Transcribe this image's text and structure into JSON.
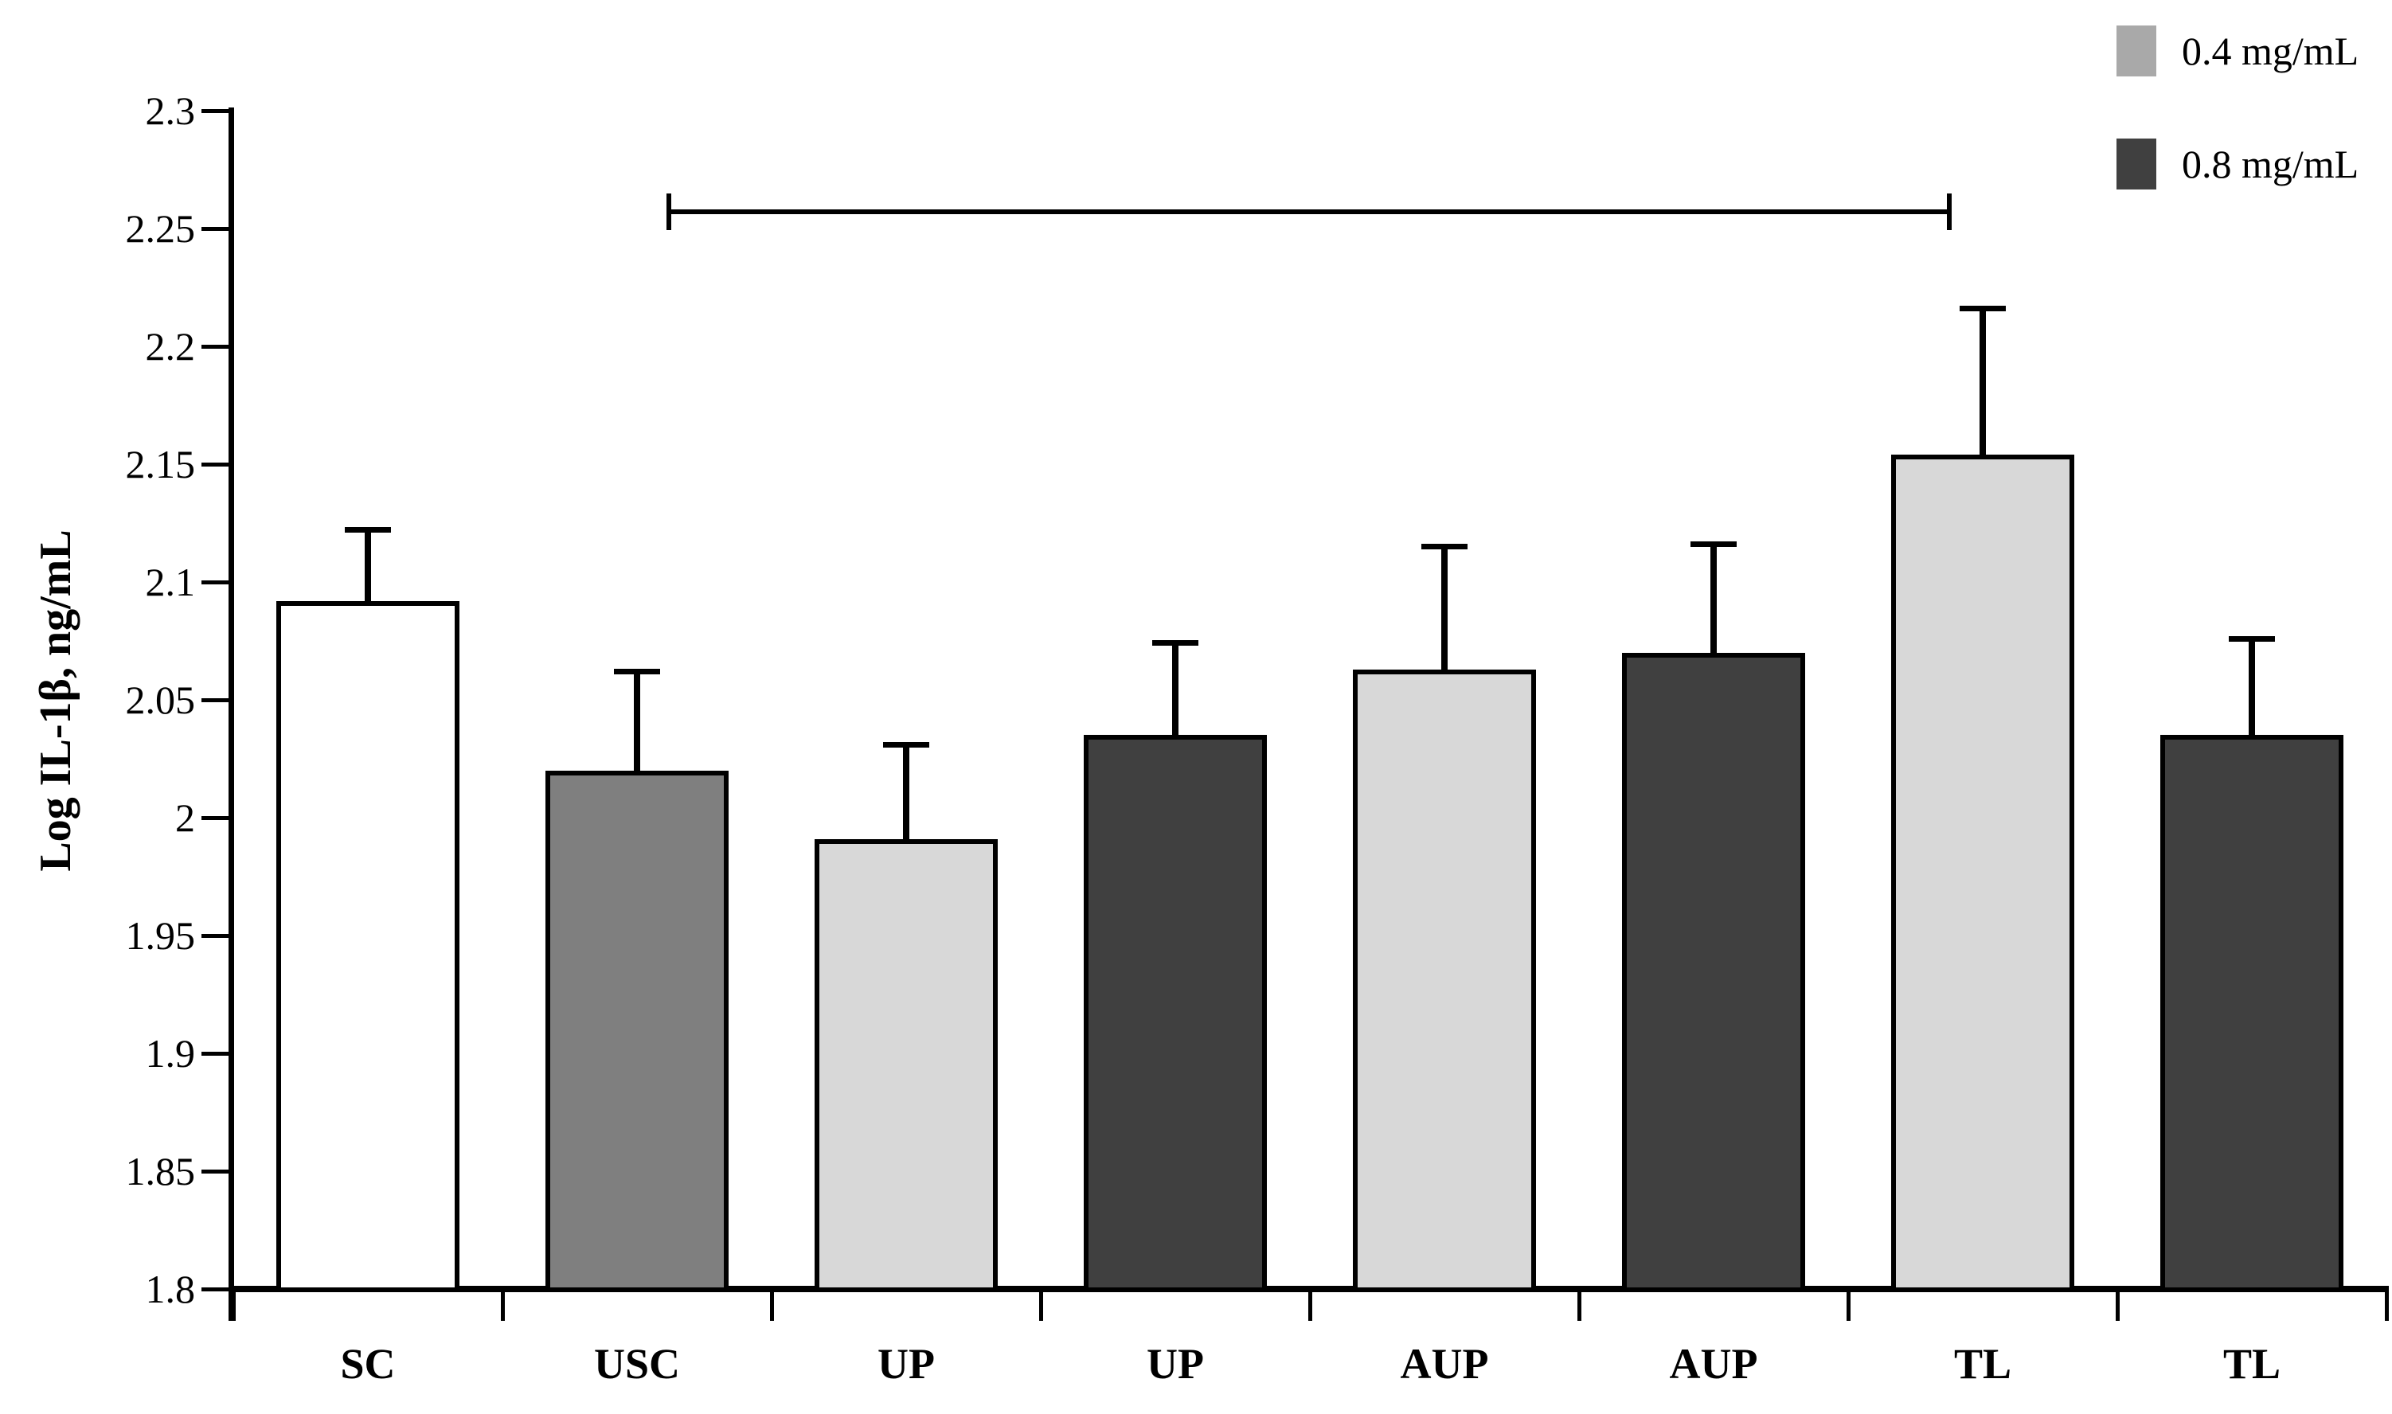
{
  "figure": {
    "background": "#ffffff",
    "y_axis_label": "Log IL-1β, ng/mL",
    "y_ticks": [
      {
        "label": "2.3",
        "value": 2.3
      },
      {
        "label": "2.25",
        "value": 2.25
      },
      {
        "label": "2.2",
        "value": 2.2
      },
      {
        "label": "2.15",
        "value": 2.15
      },
      {
        "label": "2.1",
        "value": 2.1
      },
      {
        "label": "2.05",
        "value": 2.05
      },
      {
        "label": "2",
        "value": 2.0
      },
      {
        "label": "1.95",
        "value": 1.95
      },
      {
        "label": "1.9",
        "value": 1.9
      },
      {
        "label": "1.85",
        "value": 1.85
      },
      {
        "label": "1.8",
        "value": 1.8
      }
    ],
    "legend": [
      {
        "label": "0.4 mg/mL",
        "color": "#a9a9a9"
      },
      {
        "label": "0.8 mg/mL",
        "color": "#404040"
      }
    ]
  },
  "chart_data": {
    "type": "bar",
    "title": "",
    "xlabel": "",
    "ylabel": "Log IL-1β, ng/mL",
    "ylim": [
      1.8,
      2.3
    ],
    "grid": false,
    "legend_position": "top-right",
    "categories": [
      "SC",
      "USC",
      "UP",
      "UP",
      "AUP",
      "AUP",
      "TL",
      "TL"
    ],
    "bars": [
      {
        "category": "SC",
        "group": null,
        "value": 2.092,
        "error_top": 2.122,
        "fill": "#ffffff"
      },
      {
        "category": "USC",
        "group": null,
        "value": 2.02,
        "error_top": 2.062,
        "fill": "#7f7f7f"
      },
      {
        "category": "UP",
        "group": "0.4 mg/mL",
        "value": 1.991,
        "error_top": 2.031,
        "fill": "#d8d8d8"
      },
      {
        "category": "UP",
        "group": "0.8 mg/mL",
        "value": 2.035,
        "error_top": 2.074,
        "fill": "#404040"
      },
      {
        "category": "AUP",
        "group": "0.4 mg/mL",
        "value": 2.063,
        "error_top": 2.115,
        "fill": "#d8d8d8"
      },
      {
        "category": "AUP",
        "group": "0.8 mg/mL",
        "value": 2.07,
        "error_top": 2.116,
        "fill": "#404040"
      },
      {
        "category": "TL",
        "group": "0.4 mg/mL",
        "value": 2.154,
        "error_top": 2.216,
        "fill": "#d8d8d8"
      },
      {
        "category": "TL",
        "group": "0.8 mg/mL",
        "value": 2.035,
        "error_top": 2.076,
        "fill": "#404040"
      }
    ],
    "significance_bracket": {
      "from_bar_index": 1,
      "to_bar_index": 6,
      "y_value": 2.257
    }
  }
}
